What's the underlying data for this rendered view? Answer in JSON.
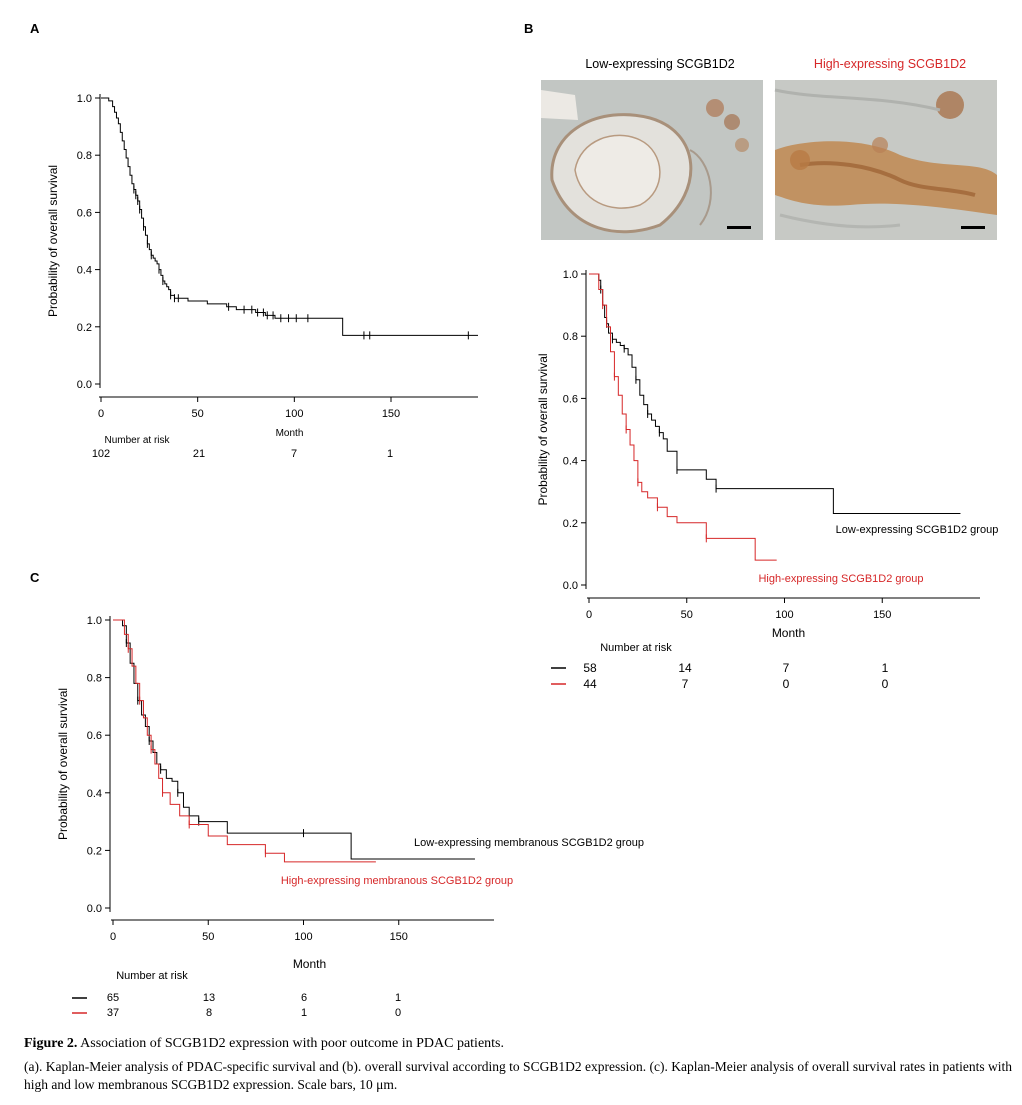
{
  "panels": {
    "A": {
      "label": "A",
      "ylabel": "Probability of overall survival",
      "xlabel": "Month",
      "yticks": [
        "1.0",
        "0.8",
        "0.6",
        "0.4",
        "0.2",
        "0.0"
      ],
      "xticks": [
        "0",
        "50",
        "100",
        "150"
      ],
      "risk_title": "Number at risk",
      "risk_values": [
        "102",
        "21",
        "7",
        "1"
      ]
    },
    "B": {
      "label": "B",
      "ihc_low_title": "Low-expressing SCGB1D2",
      "ihc_high_title": "High-expressing SCGB1D2",
      "ylabel": "Probability of overall survival",
      "xlabel": "Month",
      "yticks": [
        "1.0",
        "0.8",
        "0.6",
        "0.4",
        "0.2",
        "0.0"
      ],
      "xticks": [
        "0",
        "50",
        "100",
        "150"
      ],
      "curve_label_low": "Low-expressing SCGB1D2 group",
      "curve_label_high": "High-expressing SCGB1D2 group",
      "risk_title": "Number at risk",
      "risk_low": [
        "58",
        "14",
        "7",
        "1"
      ],
      "risk_high": [
        "44",
        "7",
        "0",
        "0"
      ]
    },
    "C": {
      "label": "C",
      "ylabel": "Probability of overall survival",
      "xlabel": "Month",
      "yticks": [
        "1.0",
        "0.8",
        "0.6",
        "0.4",
        "0.2",
        "0.0"
      ],
      "xticks": [
        "0",
        "50",
        "100",
        "150"
      ],
      "curve_label_low": "Low-expressing membranous SCGB1D2 group",
      "curve_label_high": "High-expressing membranous SCGB1D2 group",
      "risk_title": "Number at risk",
      "risk_low": [
        "65",
        "13",
        "6",
        "1"
      ],
      "risk_high": [
        "37",
        "8",
        "1",
        "0"
      ]
    }
  },
  "colors": {
    "low": "#000000",
    "high": "#d62728",
    "ihc_bg": "#c9ccc9",
    "ihc_stain": "#b07a45"
  },
  "caption": {
    "title_bold": "Figure 2.",
    "title_rest": " Association of SCGB1D2 expression with poor outcome in PDAC patients.",
    "body": "(a). Kaplan-Meier analysis of PDAC-specific survival and (b). overall survival according to SCGB1D2 expression. (c). Kaplan-Meier analysis of overall survival rates in patients with high and low membranous SCGB1D2 expression. Scale bars, 10 μm."
  },
  "chart_data": [
    {
      "panel": "A",
      "type": "line",
      "ylabel": "Probability of overall survival",
      "xlabel": "Month",
      "xlim": [
        0,
        195
      ],
      "ylim": [
        0,
        1
      ],
      "series": [
        {
          "x": [
            0,
            4,
            6,
            7,
            8,
            9,
            10,
            11,
            12,
            13,
            14,
            15,
            16,
            17,
            18,
            19,
            20,
            21,
            22,
            23,
            24,
            25,
            26,
            27,
            28,
            29,
            30,
            31,
            32,
            33,
            34,
            35,
            36,
            38,
            40,
            45,
            50,
            55,
            60,
            65,
            70,
            80,
            85,
            90,
            100,
            110,
            125,
            195
          ],
          "y": [
            1.0,
            0.99,
            0.97,
            0.95,
            0.93,
            0.91,
            0.88,
            0.85,
            0.82,
            0.79,
            0.76,
            0.73,
            0.7,
            0.68,
            0.66,
            0.64,
            0.61,
            0.58,
            0.55,
            0.52,
            0.49,
            0.47,
            0.45,
            0.44,
            0.43,
            0.42,
            0.4,
            0.38,
            0.36,
            0.35,
            0.34,
            0.33,
            0.31,
            0.3,
            0.3,
            0.29,
            0.29,
            0.28,
            0.28,
            0.27,
            0.26,
            0.25,
            0.24,
            0.23,
            0.23,
            0.23,
            0.17,
            0.17
          ],
          "censored_x": [
            17,
            18,
            19,
            20,
            22,
            24,
            26,
            30,
            32,
            36,
            38,
            40,
            66,
            74,
            78,
            81,
            84,
            86,
            89,
            93,
            97,
            101,
            107,
            136,
            139,
            190
          ]
        }
      ],
      "risk_at": [
        0,
        50,
        100,
        150
      ],
      "risk": [
        102,
        21,
        7,
        1
      ]
    },
    {
      "panel": "B",
      "type": "line",
      "ylabel": "Probability of overall survival",
      "xlabel": "Month",
      "xlim": [
        0,
        200
      ],
      "ylim": [
        0,
        1
      ],
      "series": [
        {
          "name": "Low-expressing SCGB1D2 group",
          "color": "#000000",
          "x": [
            0,
            5,
            6,
            7,
            8,
            9,
            10,
            11,
            12,
            14,
            16,
            18,
            20,
            22,
            24,
            26,
            28,
            30,
            32,
            34,
            36,
            38,
            40,
            45,
            50,
            60,
            65,
            125,
            190
          ],
          "y": [
            1.0,
            0.98,
            0.95,
            0.9,
            0.86,
            0.84,
            0.81,
            0.81,
            0.79,
            0.78,
            0.77,
            0.76,
            0.74,
            0.7,
            0.66,
            0.61,
            0.58,
            0.55,
            0.53,
            0.51,
            0.49,
            0.47,
            0.43,
            0.37,
            0.37,
            0.34,
            0.31,
            0.23,
            0.23
          ]
        },
        {
          "name": "High-expressing SCGB1D2 group",
          "color": "#d62728",
          "x": [
            0,
            5,
            7,
            9,
            11,
            13,
            15,
            17,
            19,
            21,
            23,
            25,
            27,
            30,
            35,
            40,
            45,
            60,
            85,
            96
          ],
          "y": [
            1.0,
            0.95,
            0.9,
            0.83,
            0.75,
            0.67,
            0.61,
            0.55,
            0.5,
            0.45,
            0.4,
            0.33,
            0.3,
            0.28,
            0.25,
            0.22,
            0.2,
            0.15,
            0.08,
            0.08
          ]
        }
      ],
      "risk_at": [
        0,
        50,
        100,
        150
      ],
      "risk": [
        [
          58,
          14,
          7,
          1
        ],
        [
          44,
          7,
          0,
          0
        ]
      ]
    },
    {
      "panel": "C",
      "type": "line",
      "ylabel": "Probability of overall survival",
      "xlabel": "Month",
      "xlim": [
        0,
        200
      ],
      "ylim": [
        0,
        1
      ],
      "series": [
        {
          "name": "Low-expressing membranous SCGB1D2 group",
          "color": "#000000",
          "x": [
            0,
            5,
            7,
            9,
            11,
            13,
            15,
            17,
            19,
            21,
            23,
            25,
            28,
            31,
            34,
            37,
            40,
            45,
            60,
            80,
            100,
            125,
            190
          ],
          "y": [
            1.0,
            0.98,
            0.92,
            0.85,
            0.78,
            0.72,
            0.67,
            0.63,
            0.58,
            0.54,
            0.5,
            0.48,
            0.45,
            0.44,
            0.4,
            0.35,
            0.32,
            0.3,
            0.26,
            0.26,
            0.26,
            0.17,
            0.17
          ]
        },
        {
          "name": "High-expressing membranous SCGB1D2 group",
          "color": "#d62728",
          "x": [
            0,
            6,
            8,
            10,
            12,
            14,
            16,
            18,
            20,
            22,
            24,
            26,
            30,
            35,
            40,
            50,
            60,
            80,
            90,
            138
          ],
          "y": [
            1.0,
            0.95,
            0.9,
            0.84,
            0.78,
            0.72,
            0.66,
            0.6,
            0.55,
            0.5,
            0.45,
            0.4,
            0.36,
            0.32,
            0.29,
            0.25,
            0.22,
            0.19,
            0.16,
            0.16
          ]
        }
      ],
      "risk_at": [
        0,
        50,
        100,
        150
      ],
      "risk": [
        [
          65,
          13,
          6,
          1
        ],
        [
          37,
          8,
          1,
          0
        ]
      ]
    }
  ]
}
